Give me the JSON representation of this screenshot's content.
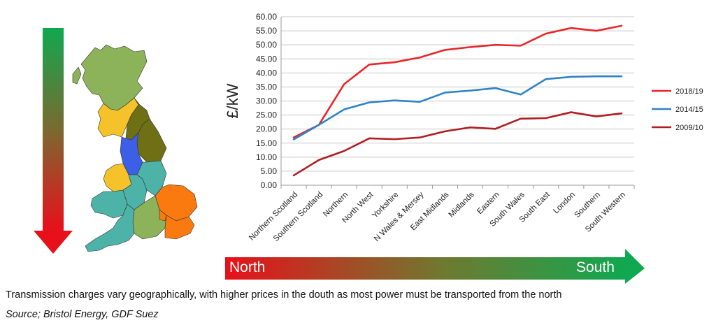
{
  "caption": "Transmission charges vary geographically, with higher prices in the douth as most power must be transported from the north",
  "source": "Source; Bristol Energy, GDF Suez",
  "arrow_labels": {
    "left": "North",
    "right": "South"
  },
  "colors": {
    "green": "#10a850",
    "red": "#e8101a",
    "series_2018": "#e8262a",
    "series_2014": "#2f82c8",
    "series_2009": "#b01e22"
  },
  "map_regions": [
    {
      "name": "Northern Scotland",
      "color": "#8db35a"
    },
    {
      "name": "Southern Scotland",
      "color": "#f5c22a"
    },
    {
      "name": "North West",
      "color": "#3d5ee6"
    },
    {
      "name": "Northern",
      "color": "#6f6f16"
    },
    {
      "name": "Yorkshire",
      "color": "#6f6f16"
    },
    {
      "name": "N Wales & Mersey",
      "color": "#f5c22a"
    },
    {
      "name": "Midlands",
      "color": "#4db3a8"
    },
    {
      "name": "East Midlands",
      "color": "#4db3a8"
    },
    {
      "name": "Eastern",
      "color": "#fb7a10"
    },
    {
      "name": "South Wales",
      "color": "#4db3a8"
    },
    {
      "name": "Southern",
      "color": "#8db35a"
    },
    {
      "name": "South Western",
      "color": "#4db3a8"
    },
    {
      "name": "London",
      "color": "#fb7a10"
    },
    {
      "name": "South East",
      "color": "#fb7a10"
    }
  ],
  "chart_data": {
    "type": "line",
    "title": "",
    "xlabel": "",
    "ylabel": "£/kW",
    "ylim": [
      0,
      60
    ],
    "ytick_step": 5,
    "grid": true,
    "legend_position": "right",
    "categories": [
      "Northern Scotland",
      "Southern Scotland",
      "Northern",
      "North West",
      "Yorkshire",
      "N Wales & Mersey",
      "East Midlands",
      "Midlands",
      "Eastern",
      "South Wales",
      "South East",
      "London",
      "Southern",
      "South Western"
    ],
    "series": [
      {
        "name": "2018/19",
        "color": "#e8262a",
        "values": [
          17.0,
          21.5,
          36.0,
          43.0,
          43.8,
          45.5,
          48.2,
          49.2,
          50.0,
          49.7,
          54.0,
          56.0,
          55.0,
          56.8
        ]
      },
      {
        "name": "2014/15",
        "color": "#2f82c8",
        "values": [
          16.3,
          21.5,
          27.0,
          29.5,
          30.2,
          29.7,
          33.0,
          33.7,
          34.6,
          32.3,
          37.8,
          38.6,
          38.8,
          38.8
        ]
      },
      {
        "name": "2009/10",
        "color": "#b01e22",
        "values": [
          3.5,
          9.0,
          12.2,
          16.7,
          16.4,
          17.0,
          19.2,
          20.6,
          20.1,
          23.7,
          23.9,
          26.0,
          24.5,
          25.6
        ]
      }
    ]
  }
}
